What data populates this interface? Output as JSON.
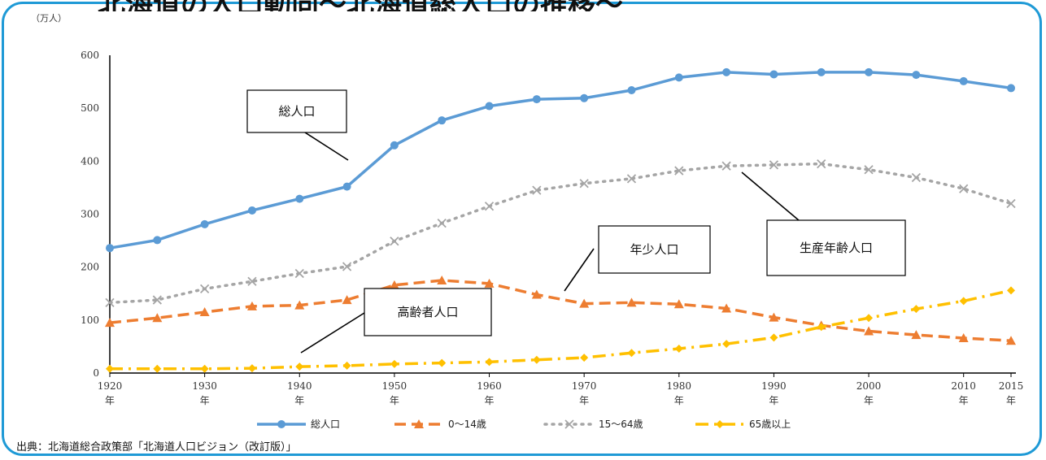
{
  "chart_data": {
    "type": "line",
    "ylabel": "（万人）",
    "ylim": [
      0,
      600
    ],
    "yticks": [
      "0",
      "100",
      "200",
      "300",
      "400",
      "500",
      "600"
    ],
    "x": [
      1920,
      1925,
      1930,
      1935,
      1940,
      1945,
      1950,
      1955,
      1960,
      1965,
      1970,
      1975,
      1980,
      1985,
      1990,
      1995,
      2000,
      2005,
      2010,
      2015
    ],
    "xtick_labels": [
      {
        "year": 1920,
        "label": "1920",
        "unit": "年"
      },
      {
        "year": 1930,
        "label": "1930",
        "unit": "年"
      },
      {
        "year": 1940,
        "label": "1940",
        "unit": "年"
      },
      {
        "year": 1950,
        "label": "1950",
        "unit": "年"
      },
      {
        "year": 1960,
        "label": "1960",
        "unit": "年"
      },
      {
        "year": 1970,
        "label": "1970",
        "unit": "年"
      },
      {
        "year": 1980,
        "label": "1980",
        "unit": "年"
      },
      {
        "year": 1990,
        "label": "1990",
        "unit": "年"
      },
      {
        "year": 2000,
        "label": "2000",
        "unit": "年"
      },
      {
        "year": 2010,
        "label": "2010",
        "unit": "年"
      },
      {
        "year": 2015,
        "label": "2015",
        "unit": "年"
      }
    ],
    "series": [
      {
        "name": "総人口",
        "color": "#5b9bd5",
        "style": "solid",
        "marker": "circle",
        "values": [
          236,
          251,
          281,
          307,
          329,
          352,
          430,
          477,
          504,
          517,
          519,
          534,
          558,
          568,
          564,
          568,
          568,
          563,
          551,
          538
        ]
      },
      {
        "name": "0～14歳",
        "color": "#ed7d31",
        "style": "dash",
        "marker": "triangle",
        "values": [
          95,
          104,
          115,
          126,
          128,
          138,
          166,
          175,
          169,
          148,
          131,
          133,
          130,
          122,
          105,
          90,
          79,
          72,
          66,
          61
        ]
      },
      {
        "name": "15～64歳",
        "color": "#a5a5a5",
        "style": "dot",
        "marker": "x",
        "values": [
          133,
          138,
          159,
          173,
          188,
          201,
          249,
          283,
          315,
          345,
          358,
          367,
          382,
          391,
          393,
          395,
          384,
          369,
          348,
          320
        ]
      },
      {
        "name": "65歳以上",
        "color": "#ffc000",
        "style": "dashdot",
        "marker": "diamond",
        "values": [
          8,
          8,
          8,
          9,
          12,
          14,
          17,
          19,
          21,
          25,
          29,
          38,
          46,
          55,
          67,
          87,
          104,
          121,
          136,
          156
        ]
      }
    ],
    "annotations": [
      {
        "text": "総人口"
      },
      {
        "text": "生産年齢人口"
      },
      {
        "text": "年少人口"
      },
      {
        "text": "高齢者人口"
      }
    ],
    "legend_position": "bottom"
  },
  "source": "出典：北海道総合政策部「北海道人口ビジョン（改訂版）」",
  "header_cut": "北海道の人口動向〜北海道総人口の推移〜"
}
